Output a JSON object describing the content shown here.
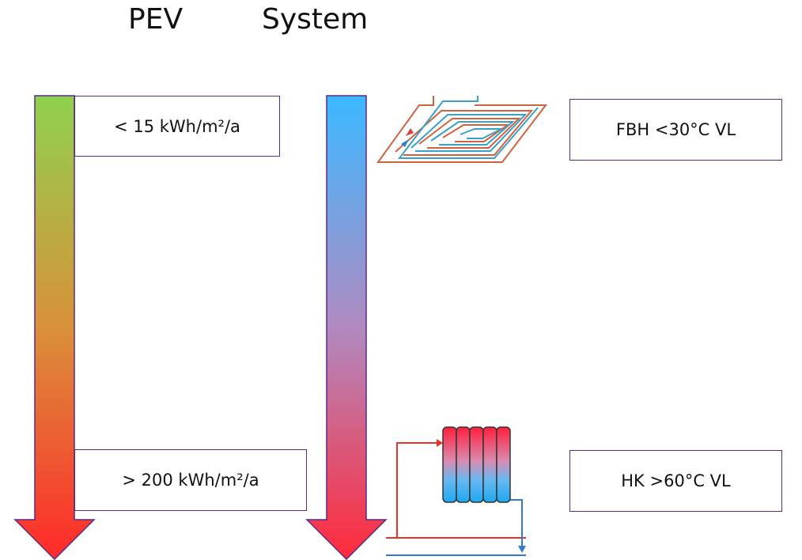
{
  "headers": {
    "pev": "PEV",
    "system": "System"
  },
  "pev_labels": {
    "top": "< 15 kWh/m²/a",
    "bottom": "> 200 kWh/m²/a"
  },
  "system_labels": {
    "top": "FBH <30°C VL",
    "bottom": "HK >60°C VL"
  },
  "icons": {
    "top": "floor-heating-icon",
    "bottom": "radiator-icon"
  },
  "colors": {
    "pev_arrow_top": "#8fd14f",
    "pev_arrow_bottom": "#ff2a2a",
    "system_arrow_top": "#3bb8ff",
    "system_arrow_bottom": "#ff2a3a",
    "box_border": "#5b2a86",
    "pipe_red": "#e8332a",
    "pipe_blue": "#2f7bd1"
  }
}
